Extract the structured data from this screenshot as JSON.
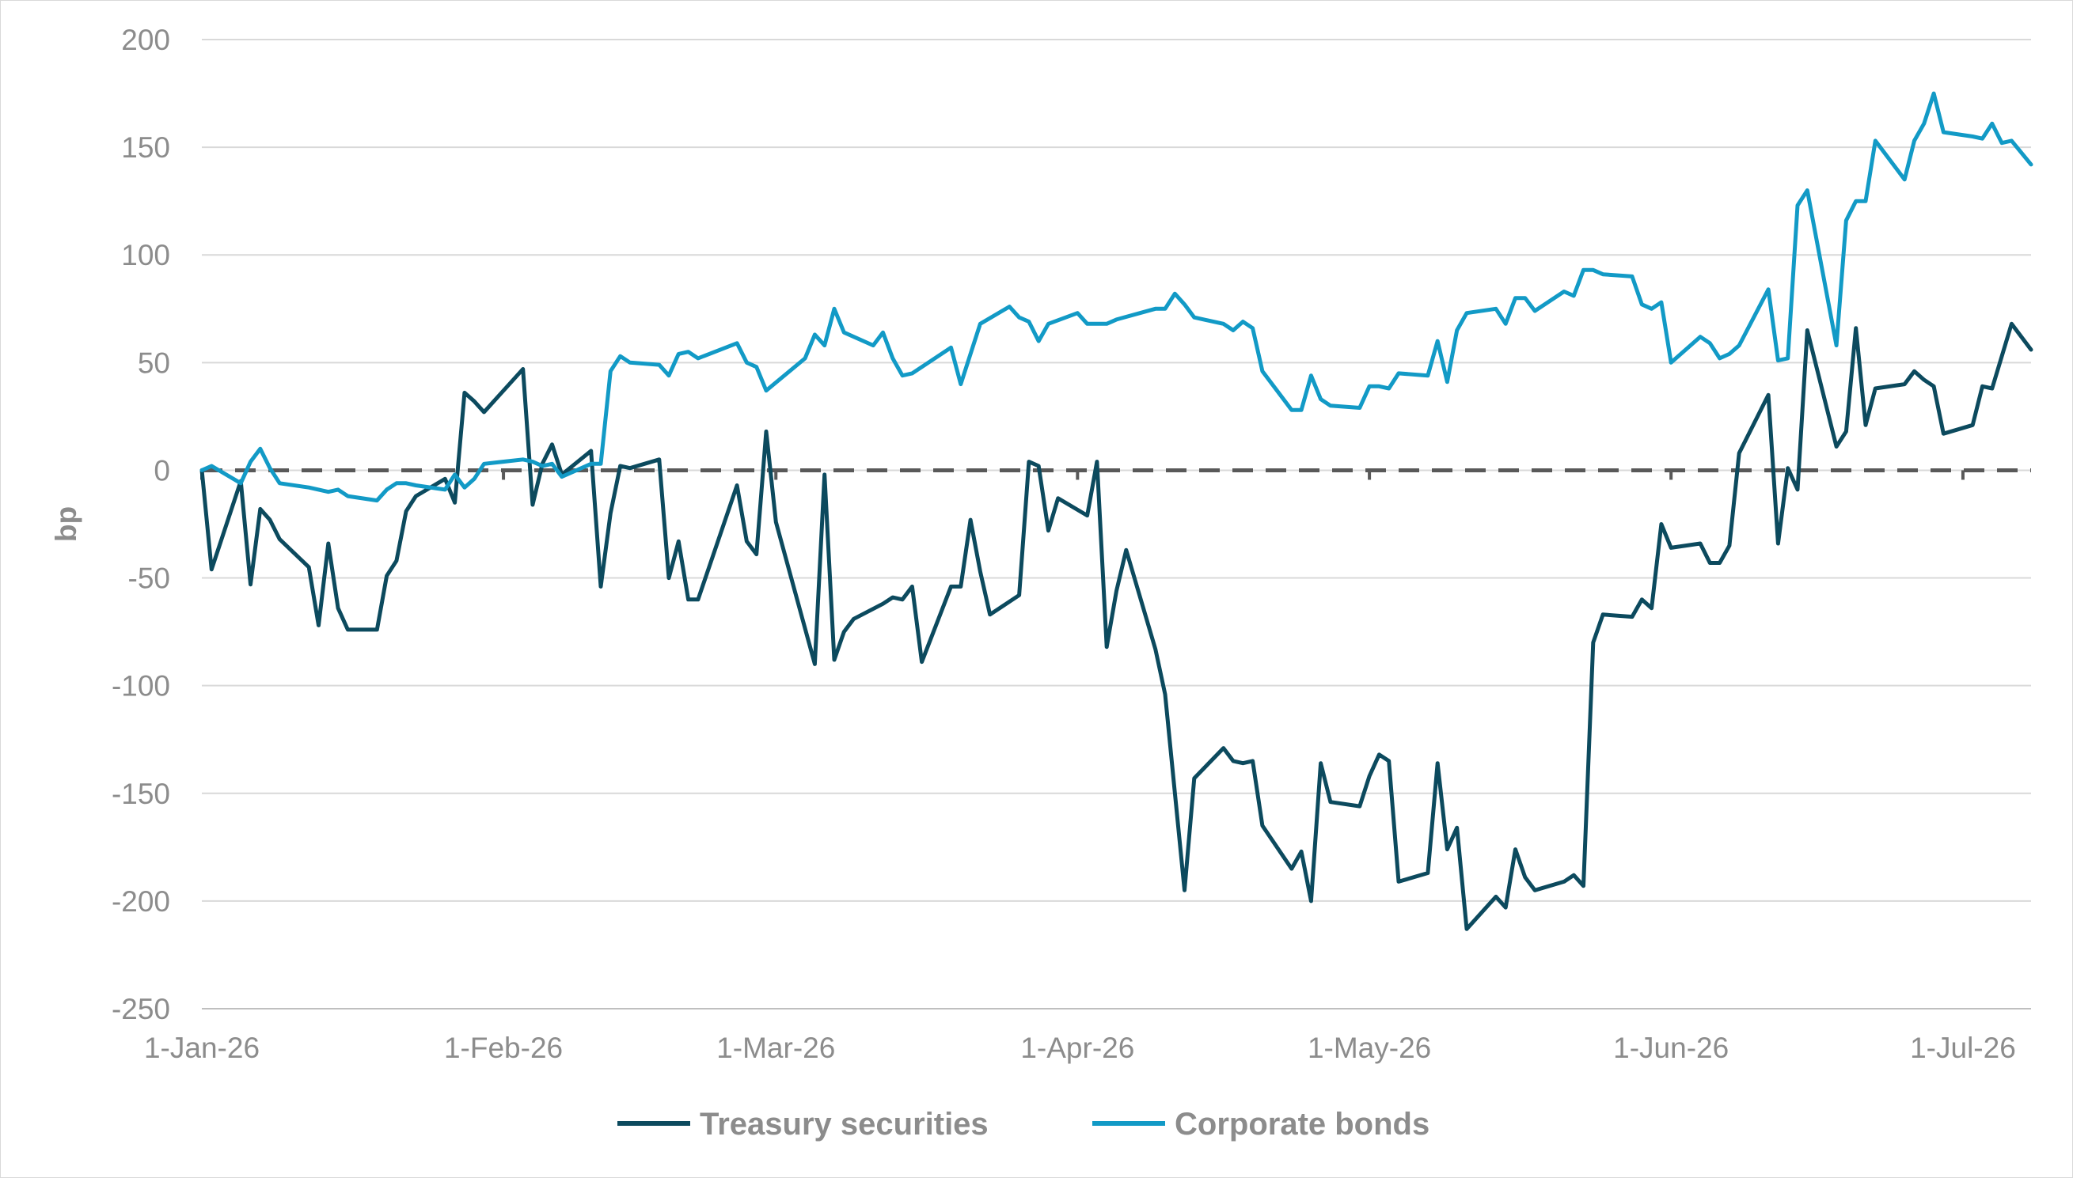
{
  "chart_data": {
    "type": "line",
    "title": "",
    "ylabel": "bp",
    "xlabel": "",
    "ylim": [
      -250,
      200
    ],
    "yticks": [
      200,
      150,
      100,
      50,
      0,
      -50,
      -100,
      -150,
      -200,
      -250
    ],
    "xlim": [
      "2026-01-01",
      "2026-07-08"
    ],
    "xticks": [
      {
        "date": "2026-01-01",
        "label": "1-Jan-26"
      },
      {
        "date": "2026-02-01",
        "label": "1-Feb-26"
      },
      {
        "date": "2026-03-01",
        "label": "1-Mar-26"
      },
      {
        "date": "2026-04-01",
        "label": "1-Apr-26"
      },
      {
        "date": "2026-05-01",
        "label": "1-May-26"
      },
      {
        "date": "2026-06-01",
        "label": "1-Jun-26"
      },
      {
        "date": "2026-07-01",
        "label": "1-Jul-26"
      }
    ],
    "grid": true,
    "reference_line": {
      "y": 0,
      "style": "dashed",
      "color": "#595959"
    },
    "legend": {
      "position": "bottom"
    },
    "series": [
      {
        "name": "Treasury securities",
        "color": "#0c4a5e",
        "points": [
          [
            "2026-01-01",
            0
          ],
          [
            "2026-01-02",
            -46
          ],
          [
            "2026-01-05",
            -5
          ],
          [
            "2026-01-06",
            -53
          ],
          [
            "2026-01-07",
            -18
          ],
          [
            "2026-01-08",
            -23
          ],
          [
            "2026-01-09",
            -32
          ],
          [
            "2026-01-12",
            -45
          ],
          [
            "2026-01-13",
            -72
          ],
          [
            "2026-01-14",
            -34
          ],
          [
            "2026-01-15",
            -64
          ],
          [
            "2026-01-16",
            -74
          ],
          [
            "2026-01-19",
            -74
          ],
          [
            "2026-01-20",
            -49
          ],
          [
            "2026-01-21",
            -42
          ],
          [
            "2026-01-22",
            -19
          ],
          [
            "2026-01-23",
            -12
          ],
          [
            "2026-01-26",
            -4
          ],
          [
            "2026-01-27",
            -15
          ],
          [
            "2026-01-28",
            36
          ],
          [
            "2026-01-29",
            32
          ],
          [
            "2026-01-30",
            27
          ],
          [
            "2026-02-03",
            47
          ],
          [
            "2026-02-04",
            -16
          ],
          [
            "2026-02-05",
            3
          ],
          [
            "2026-02-06",
            12
          ],
          [
            "2026-02-07",
            -2
          ],
          [
            "2026-02-10",
            9
          ],
          [
            "2026-02-11",
            -54
          ],
          [
            "2026-02-12",
            -20
          ],
          [
            "2026-02-13",
            2
          ],
          [
            "2026-02-14",
            1
          ],
          [
            "2026-02-17",
            5
          ],
          [
            "2026-02-18",
            -50
          ],
          [
            "2026-02-19",
            -33
          ],
          [
            "2026-02-20",
            -60
          ],
          [
            "2026-02-21",
            -60
          ],
          [
            "2026-02-25",
            -7
          ],
          [
            "2026-02-26",
            -33
          ],
          [
            "2026-02-27",
            -39
          ],
          [
            "2026-02-28",
            18
          ],
          [
            "2026-03-01",
            -24
          ],
          [
            "2026-03-05",
            -90
          ],
          [
            "2026-03-06",
            -2
          ],
          [
            "2026-03-07",
            -88
          ],
          [
            "2026-03-08",
            -75
          ],
          [
            "2026-03-09",
            -69
          ],
          [
            "2026-03-12",
            -62
          ],
          [
            "2026-03-13",
            -59
          ],
          [
            "2026-03-14",
            -60
          ],
          [
            "2026-03-15",
            -54
          ],
          [
            "2026-03-16",
            -89
          ],
          [
            "2026-03-19",
            -54
          ],
          [
            "2026-03-20",
            -54
          ],
          [
            "2026-03-21",
            -23
          ],
          [
            "2026-03-22",
            -47
          ],
          [
            "2026-03-23",
            -67
          ],
          [
            "2026-03-26",
            -58
          ],
          [
            "2026-03-27",
            4
          ],
          [
            "2026-03-28",
            2
          ],
          [
            "2026-03-29",
            -28
          ],
          [
            "2026-03-30",
            -13
          ],
          [
            "2026-04-02",
            -21
          ],
          [
            "2026-04-03",
            4
          ],
          [
            "2026-04-04",
            -82
          ],
          [
            "2026-04-05",
            -56
          ],
          [
            "2026-04-06",
            -37
          ],
          [
            "2026-04-09",
            -83
          ],
          [
            "2026-04-10",
            -104
          ],
          [
            "2026-04-12",
            -195
          ],
          [
            "2026-04-13",
            -143
          ],
          [
            "2026-04-16",
            -129
          ],
          [
            "2026-04-17",
            -135
          ],
          [
            "2026-04-18",
            -136
          ],
          [
            "2026-04-19",
            -135
          ],
          [
            "2026-04-20",
            -165
          ],
          [
            "2026-04-23",
            -185
          ],
          [
            "2026-04-24",
            -177
          ],
          [
            "2026-04-25",
            -200
          ],
          [
            "2026-04-26",
            -136
          ],
          [
            "2026-04-27",
            -154
          ],
          [
            "2026-04-30",
            -156
          ],
          [
            "2026-05-01",
            -142
          ],
          [
            "2026-05-02",
            -132
          ],
          [
            "2026-05-03",
            -135
          ],
          [
            "2026-05-04",
            -191
          ],
          [
            "2026-05-07",
            -187
          ],
          [
            "2026-05-08",
            -136
          ],
          [
            "2026-05-09",
            -176
          ],
          [
            "2026-05-10",
            -166
          ],
          [
            "2026-05-11",
            -213
          ],
          [
            "2026-05-14",
            -198
          ],
          [
            "2026-05-15",
            -203
          ],
          [
            "2026-05-16",
            -176
          ],
          [
            "2026-05-17",
            -189
          ],
          [
            "2026-05-18",
            -195
          ],
          [
            "2026-05-21",
            -191
          ],
          [
            "2026-05-22",
            -188
          ],
          [
            "2026-05-23",
            -193
          ],
          [
            "2026-05-24",
            -80
          ],
          [
            "2026-05-25",
            -67
          ],
          [
            "2026-05-28",
            -68
          ],
          [
            "2026-05-29",
            -60
          ],
          [
            "2026-05-30",
            -64
          ],
          [
            "2026-05-31",
            -25
          ],
          [
            "2026-06-01",
            -36
          ],
          [
            "2026-06-04",
            -34
          ],
          [
            "2026-06-05",
            -43
          ],
          [
            "2026-06-06",
            -43
          ],
          [
            "2026-06-07",
            -35
          ],
          [
            "2026-06-08",
            8
          ],
          [
            "2026-06-11",
            35
          ],
          [
            "2026-06-12",
            -34
          ],
          [
            "2026-06-13",
            1
          ],
          [
            "2026-06-14",
            -9
          ],
          [
            "2026-06-15",
            65
          ],
          [
            "2026-06-18",
            11
          ],
          [
            "2026-06-19",
            18
          ],
          [
            "2026-06-20",
            66
          ],
          [
            "2026-06-21",
            21
          ],
          [
            "2026-06-22",
            38
          ],
          [
            "2026-06-25",
            40
          ],
          [
            "2026-06-26",
            46
          ],
          [
            "2026-06-27",
            42
          ],
          [
            "2026-06-28",
            39
          ],
          [
            "2026-06-29",
            17
          ],
          [
            "2026-07-02",
            21
          ],
          [
            "2026-07-03",
            39
          ],
          [
            "2026-07-04",
            38
          ],
          [
            "2026-07-06",
            68
          ],
          [
            "2026-07-08",
            56
          ]
        ]
      },
      {
        "name": "Corporate bonds",
        "color": "#129ac6",
        "points": [
          [
            "2026-01-01",
            0
          ],
          [
            "2026-01-02",
            2
          ],
          [
            "2026-01-05",
            -6
          ],
          [
            "2026-01-06",
            4
          ],
          [
            "2026-01-07",
            10
          ],
          [
            "2026-01-08",
            1
          ],
          [
            "2026-01-09",
            -6
          ],
          [
            "2026-01-12",
            -8
          ],
          [
            "2026-01-13",
            -9
          ],
          [
            "2026-01-14",
            -10
          ],
          [
            "2026-01-15",
            -9
          ],
          [
            "2026-01-16",
            -12
          ],
          [
            "2026-01-19",
            -14
          ],
          [
            "2026-01-20",
            -9
          ],
          [
            "2026-01-21",
            -6
          ],
          [
            "2026-01-22",
            -6
          ],
          [
            "2026-01-23",
            -7
          ],
          [
            "2026-01-26",
            -9
          ],
          [
            "2026-01-27",
            -2
          ],
          [
            "2026-01-28",
            -8
          ],
          [
            "2026-01-29",
            -4
          ],
          [
            "2026-01-30",
            3
          ],
          [
            "2026-02-03",
            5
          ],
          [
            "2026-02-04",
            4
          ],
          [
            "2026-02-05",
            2
          ],
          [
            "2026-02-06",
            3
          ],
          [
            "2026-02-07",
            -3
          ],
          [
            "2026-02-10",
            3
          ],
          [
            "2026-02-11",
            3
          ],
          [
            "2026-02-12",
            46
          ],
          [
            "2026-02-13",
            53
          ],
          [
            "2026-02-14",
            50
          ],
          [
            "2026-02-17",
            49
          ],
          [
            "2026-02-18",
            44
          ],
          [
            "2026-02-19",
            54
          ],
          [
            "2026-02-20",
            55
          ],
          [
            "2026-02-21",
            52
          ],
          [
            "2026-02-25",
            59
          ],
          [
            "2026-02-26",
            50
          ],
          [
            "2026-02-27",
            48
          ],
          [
            "2026-02-28",
            37
          ],
          [
            "2026-03-04",
            52
          ],
          [
            "2026-03-05",
            63
          ],
          [
            "2026-03-06",
            58
          ],
          [
            "2026-03-07",
            75
          ],
          [
            "2026-03-08",
            64
          ],
          [
            "2026-03-11",
            58
          ],
          [
            "2026-03-12",
            64
          ],
          [
            "2026-03-13",
            52
          ],
          [
            "2026-03-14",
            44
          ],
          [
            "2026-03-15",
            45
          ],
          [
            "2026-03-19",
            57
          ],
          [
            "2026-03-20",
            40
          ],
          [
            "2026-03-22",
            68
          ],
          [
            "2026-03-25",
            76
          ],
          [
            "2026-03-26",
            71
          ],
          [
            "2026-03-27",
            69
          ],
          [
            "2026-03-28",
            60
          ],
          [
            "2026-03-29",
            68
          ],
          [
            "2026-04-01",
            73
          ],
          [
            "2026-04-02",
            68
          ],
          [
            "2026-04-04",
            68
          ],
          [
            "2026-04-05",
            70
          ],
          [
            "2026-04-09",
            75
          ],
          [
            "2026-04-10",
            75
          ],
          [
            "2026-04-11",
            82
          ],
          [
            "2026-04-12",
            77
          ],
          [
            "2026-04-13",
            71
          ],
          [
            "2026-04-16",
            68
          ],
          [
            "2026-04-17",
            65
          ],
          [
            "2026-04-18",
            69
          ],
          [
            "2026-04-19",
            66
          ],
          [
            "2026-04-20",
            46
          ],
          [
            "2026-04-23",
            28
          ],
          [
            "2026-04-24",
            28
          ],
          [
            "2026-04-25",
            44
          ],
          [
            "2026-04-26",
            33
          ],
          [
            "2026-04-27",
            30
          ],
          [
            "2026-04-30",
            29
          ],
          [
            "2026-05-01",
            39
          ],
          [
            "2026-05-02",
            39
          ],
          [
            "2026-05-03",
            38
          ],
          [
            "2026-05-04",
            45
          ],
          [
            "2026-05-07",
            44
          ],
          [
            "2026-05-08",
            60
          ],
          [
            "2026-05-09",
            41
          ],
          [
            "2026-05-10",
            65
          ],
          [
            "2026-05-11",
            73
          ],
          [
            "2026-05-14",
            75
          ],
          [
            "2026-05-15",
            68
          ],
          [
            "2026-05-16",
            80
          ],
          [
            "2026-05-17",
            80
          ],
          [
            "2026-05-18",
            74
          ],
          [
            "2026-05-21",
            83
          ],
          [
            "2026-05-22",
            81
          ],
          [
            "2026-05-23",
            93
          ],
          [
            "2026-05-24",
            93
          ],
          [
            "2026-05-25",
            91
          ],
          [
            "2026-05-28",
            90
          ],
          [
            "2026-05-29",
            77
          ],
          [
            "2026-05-30",
            75
          ],
          [
            "2026-05-31",
            78
          ],
          [
            "2026-06-01",
            50
          ],
          [
            "2026-06-04",
            62
          ],
          [
            "2026-06-05",
            59
          ],
          [
            "2026-06-06",
            52
          ],
          [
            "2026-06-07",
            54
          ],
          [
            "2026-06-08",
            58
          ],
          [
            "2026-06-11",
            84
          ],
          [
            "2026-06-12",
            51
          ],
          [
            "2026-06-13",
            52
          ],
          [
            "2026-06-14",
            123
          ],
          [
            "2026-06-15",
            130
          ],
          [
            "2026-06-18",
            58
          ],
          [
            "2026-06-19",
            116
          ],
          [
            "2026-06-20",
            125
          ],
          [
            "2026-06-21",
            125
          ],
          [
            "2026-06-22",
            153
          ],
          [
            "2026-06-25",
            135
          ],
          [
            "2026-06-26",
            153
          ],
          [
            "2026-06-27",
            161
          ],
          [
            "2026-06-28",
            175
          ],
          [
            "2026-06-29",
            157
          ],
          [
            "2026-07-02",
            155
          ],
          [
            "2026-07-03",
            154
          ],
          [
            "2026-07-04",
            161
          ],
          [
            "2026-07-05",
            152
          ],
          [
            "2026-07-06",
            153
          ],
          [
            "2026-07-08",
            142
          ]
        ]
      }
    ]
  }
}
